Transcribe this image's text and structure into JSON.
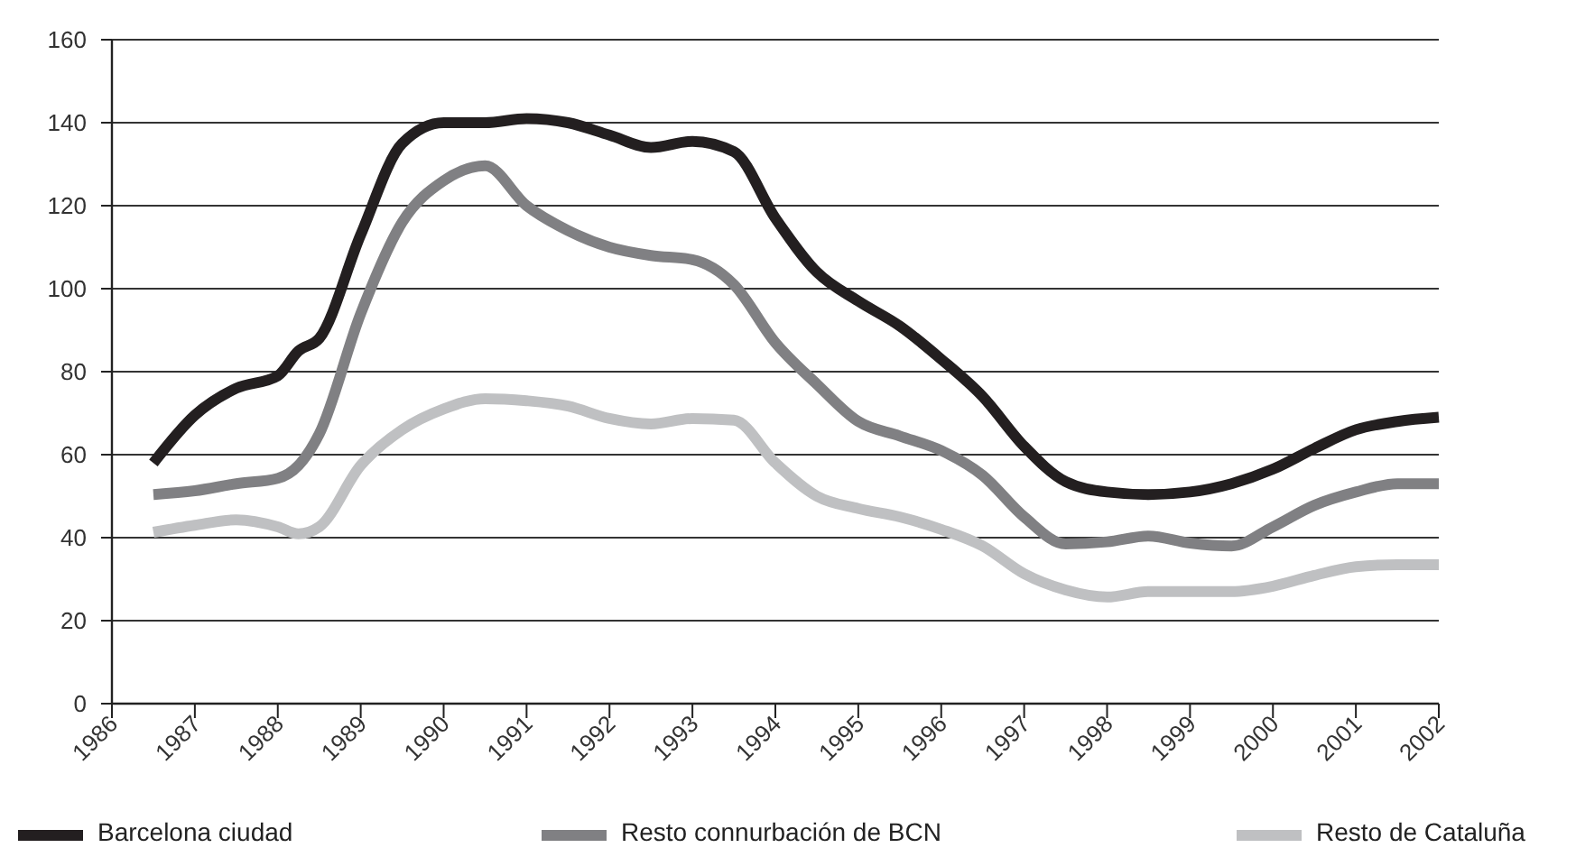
{
  "chart_data": {
    "type": "line",
    "x": [
      1986.5,
      1987,
      1987.5,
      1988,
      1988.25,
      1988.5,
      1989,
      1989.5,
      1990,
      1990.5,
      1991,
      1991.5,
      1992,
      1992.5,
      1993,
      1993.5,
      1994,
      1994.5,
      1995,
      1995.5,
      1996,
      1996.5,
      1997,
      1997.5,
      1998,
      1998.5,
      1999,
      1999.5,
      2000,
      2000.5,
      2001,
      2001.5,
      2002
    ],
    "series": [
      {
        "name": "Barcelona ciudad",
        "color": "#231f20",
        "values": [
          58,
          69.5,
          76,
          79,
          85,
          88,
          113,
          135,
          140,
          140,
          141,
          140,
          137,
          134,
          135.5,
          133,
          117,
          104,
          97,
          91,
          83,
          74,
          62,
          53.5,
          51,
          50.4,
          51,
          53,
          56.5,
          61.5,
          66,
          68,
          69
        ]
      },
      {
        "name": "Resto connurbación de BCN",
        "color": "#808083",
        "values": [
          50.4,
          51.3,
          53,
          54.3,
          57.4,
          65,
          94,
          116,
          126,
          129.6,
          120,
          114,
          110,
          108,
          107,
          101,
          87,
          77,
          68,
          64.5,
          61,
          55,
          45,
          38.5,
          39,
          40.4,
          38.7,
          38,
          42.6,
          47.8,
          51,
          53,
          53
        ]
      },
      {
        "name": "Resto de Cataluña",
        "color": "#bfc0c2",
        "values": [
          41.3,
          43,
          44.3,
          42.6,
          40.9,
          42.6,
          57.4,
          66,
          71,
          73.5,
          73,
          71.7,
          68.7,
          67.4,
          68.7,
          68.3,
          58,
          50,
          47,
          45,
          42,
          38,
          31.3,
          27.4,
          25.7,
          27,
          27,
          27,
          28.3,
          30.9,
          33,
          33.5,
          33.5
        ]
      }
    ],
    "xlim": [
      1986,
      2002
    ],
    "xticks": [
      1986,
      1987,
      1988,
      1989,
      1990,
      1991,
      1992,
      1993,
      1994,
      1995,
      1996,
      1997,
      1998,
      1999,
      2000,
      2001,
      2002
    ],
    "ylim": [
      0,
      160
    ],
    "yticks": [
      0,
      20,
      40,
      60,
      80,
      100,
      120,
      140,
      160
    ],
    "grid": "y",
    "legend": "bottom",
    "marker": "none",
    "line_style": "solid"
  }
}
